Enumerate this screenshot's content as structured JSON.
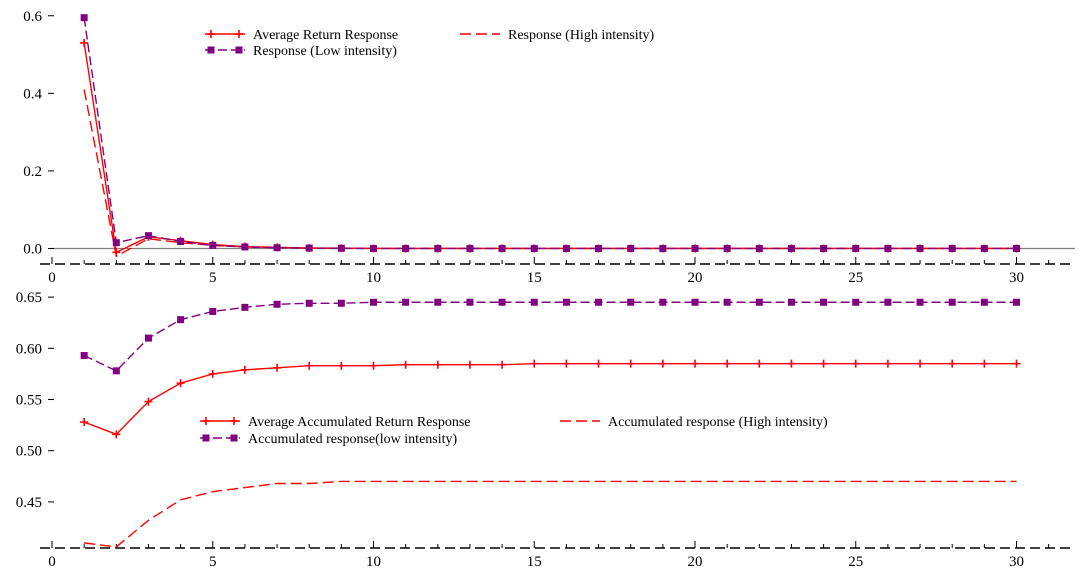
{
  "chart_data": [
    {
      "type": "line",
      "x": [
        1,
        2,
        3,
        4,
        5,
        6,
        7,
        8,
        9,
        10,
        11,
        12,
        13,
        14,
        15,
        16,
        17,
        18,
        19,
        20,
        21,
        22,
        23,
        24,
        25,
        26,
        27,
        28,
        29,
        30
      ],
      "xlim": [
        0,
        32
      ],
      "ylim": [
        -0.04,
        0.62
      ],
      "xticks": [
        0,
        5,
        10,
        15,
        20,
        25,
        30
      ],
      "yticks": [
        0.0,
        0.2,
        0.4,
        0.6
      ],
      "ytick_labels": [
        "0.0",
        "0.2",
        "0.4",
        "0.6"
      ],
      "zero_line": true,
      "legend_position": "top",
      "series": [
        {
          "name": "Average Return Response",
          "color": "#ff0000",
          "style": "solid-plus-marker",
          "values": [
            0.53,
            -0.01,
            0.03,
            0.02,
            0.01,
            0.005,
            0.003,
            0.001,
            0.001,
            0,
            0,
            0,
            0,
            0,
            0,
            0,
            0,
            0,
            0,
            0,
            0,
            0,
            0,
            0,
            0,
            0,
            0,
            0,
            0,
            0
          ]
        },
        {
          "name": "Response (High intensity)",
          "color": "#ff0000",
          "style": "dashed",
          "values": [
            0.41,
            -0.02,
            0.025,
            0.015,
            0.008,
            0.004,
            0.002,
            0.001,
            0,
            0,
            0,
            0,
            0,
            0,
            0,
            0,
            0,
            0,
            0,
            0,
            0,
            0,
            0,
            0,
            0,
            0,
            0,
            0,
            0,
            0
          ]
        },
        {
          "name": "Response (Low intensity)",
          "color": "#800080",
          "style": "dashed-square-marker",
          "values": [
            0.595,
            0.015,
            0.033,
            0.018,
            0.008,
            0.004,
            0.002,
            0.001,
            0.0005,
            0,
            0,
            0,
            0,
            0,
            0,
            0,
            0,
            0,
            0,
            0,
            0,
            0,
            0,
            0,
            0,
            0,
            0,
            0,
            0,
            0
          ]
        }
      ]
    },
    {
      "type": "line",
      "x": [
        1,
        2,
        3,
        4,
        5,
        6,
        7,
        8,
        9,
        10,
        11,
        12,
        13,
        14,
        15,
        16,
        17,
        18,
        19,
        20,
        21,
        22,
        23,
        24,
        25,
        26,
        27,
        28,
        29,
        30
      ],
      "xlim": [
        0,
        32
      ],
      "ylim": [
        0.405,
        0.655
      ],
      "xticks": [
        0,
        5,
        10,
        15,
        20,
        25,
        30
      ],
      "yticks": [
        0.45,
        0.5,
        0.55,
        0.6,
        0.65
      ],
      "ytick_labels": [
        "0.45",
        "0.50",
        "0.55",
        "0.60",
        "0.65"
      ],
      "zero_line": false,
      "legend_position": "center",
      "series": [
        {
          "name": "Average Accumulated Return Response",
          "color": "#ff0000",
          "style": "solid-plus-marker",
          "values": [
            0.528,
            0.516,
            0.548,
            0.566,
            0.575,
            0.579,
            0.581,
            0.583,
            0.583,
            0.583,
            0.584,
            0.584,
            0.584,
            0.584,
            0.585,
            0.585,
            0.585,
            0.585,
            0.585,
            0.585,
            0.585,
            0.585,
            0.585,
            0.585,
            0.585,
            0.585,
            0.585,
            0.585,
            0.585,
            0.585
          ]
        },
        {
          "name": "Accumulated response (High intensity)",
          "color": "#ff0000",
          "style": "dashed",
          "values": [
            0.41,
            0.406,
            0.432,
            0.452,
            0.46,
            0.464,
            0.468,
            0.468,
            0.47,
            0.47,
            0.47,
            0.47,
            0.47,
            0.47,
            0.47,
            0.47,
            0.47,
            0.47,
            0.47,
            0.47,
            0.47,
            0.47,
            0.47,
            0.47,
            0.47,
            0.47,
            0.47,
            0.47,
            0.47,
            0.47
          ]
        },
        {
          "name": "Accumulated response(low intensity)",
          "color": "#800080",
          "style": "dashed-square-marker",
          "values": [
            0.593,
            0.578,
            0.61,
            0.628,
            0.636,
            0.64,
            0.643,
            0.644,
            0.644,
            0.645,
            0.645,
            0.645,
            0.645,
            0.645,
            0.645,
            0.645,
            0.645,
            0.645,
            0.645,
            0.645,
            0.645,
            0.645,
            0.645,
            0.645,
            0.645,
            0.645,
            0.645,
            0.645,
            0.645,
            0.645
          ]
        }
      ]
    }
  ]
}
